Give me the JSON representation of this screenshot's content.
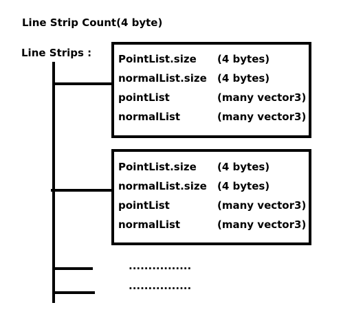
{
  "header": {
    "count_label": "Line Strip Count(4 byte)",
    "strips_label": "Line Strips :"
  },
  "blocks": [
    {
      "rows": [
        {
          "field": "PointList.size",
          "type": "(4 bytes)"
        },
        {
          "field": "normalList.size",
          "type": "(4 bytes)"
        },
        {
          "field": "pointList",
          "type": "(many vector3)"
        },
        {
          "field": "normalList",
          "type": "(many vector3)"
        }
      ]
    },
    {
      "rows": [
        {
          "field": "PointList.size",
          "type": "(4 bytes)"
        },
        {
          "field": "normalList.size",
          "type": "(4 bytes)"
        },
        {
          "field": "pointList",
          "type": "(many vector3)"
        },
        {
          "field": "normalList",
          "type": "(many vector3)"
        }
      ]
    }
  ],
  "ellipses": [
    "................",
    "................"
  ]
}
